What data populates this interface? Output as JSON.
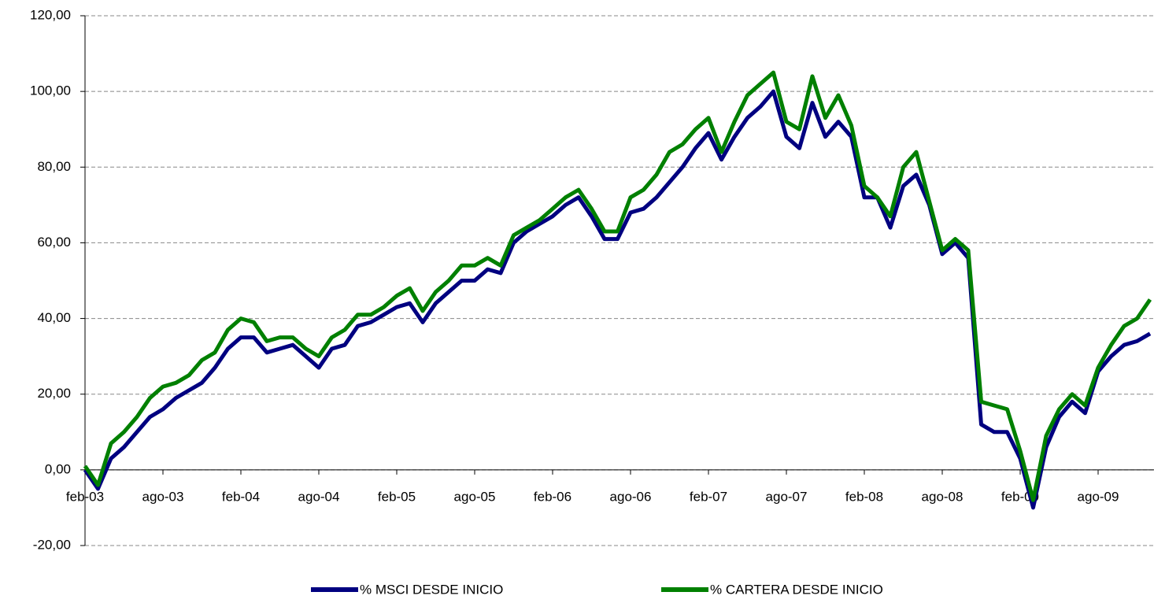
{
  "chart_data": {
    "type": "line",
    "categories": [
      "feb-03",
      null,
      null,
      null,
      null,
      null,
      "ago-03",
      null,
      null,
      null,
      null,
      null,
      "feb-04",
      null,
      null,
      null,
      null,
      null,
      "ago-04",
      null,
      null,
      null,
      null,
      null,
      "feb-05",
      null,
      null,
      null,
      null,
      null,
      "ago-05",
      null,
      null,
      null,
      null,
      null,
      "feb-06",
      null,
      null,
      null,
      null,
      null,
      "ago-06",
      null,
      null,
      null,
      null,
      null,
      "feb-07",
      null,
      null,
      null,
      null,
      null,
      "ago-07",
      null,
      null,
      null,
      null,
      null,
      "feb-08",
      null,
      null,
      null,
      null,
      null,
      "ago-08",
      null,
      null,
      null,
      null,
      null,
      "feb-09",
      null,
      null,
      null,
      null,
      null,
      "ago-09",
      null,
      null,
      null,
      null
    ],
    "series": [
      {
        "name": "% MSCI DESDE INICIO",
        "color": "#000080",
        "values": [
          0,
          -5,
          3,
          6,
          10,
          14,
          16,
          19,
          21,
          23,
          27,
          32,
          35,
          35,
          31,
          32,
          33,
          30,
          27,
          32,
          33,
          38,
          39,
          41,
          43,
          44,
          39,
          44,
          47,
          50,
          50,
          53,
          52,
          60,
          63,
          65,
          67,
          70,
          72,
          67,
          61,
          61,
          68,
          69,
          72,
          76,
          80,
          85,
          89,
          82,
          88,
          93,
          96,
          100,
          88,
          85,
          97,
          88,
          92,
          88,
          72,
          72,
          64,
          75,
          78,
          70,
          57,
          60,
          56,
          12,
          10,
          10,
          3,
          -10,
          6,
          14,
          18,
          15,
          26,
          30,
          33,
          34,
          36
        ]
      },
      {
        "name": "% CARTERA DESDE INICIO",
        "color": "#008000",
        "values": [
          1,
          -4,
          7,
          10,
          14,
          19,
          22,
          23,
          25,
          29,
          31,
          37,
          40,
          39,
          34,
          35,
          35,
          32,
          30,
          35,
          37,
          41,
          41,
          43,
          46,
          48,
          42,
          47,
          50,
          54,
          54,
          56,
          54,
          62,
          64,
          66,
          69,
          72,
          74,
          69,
          63,
          63,
          72,
          74,
          78,
          84,
          86,
          90,
          93,
          84,
          92,
          99,
          102,
          105,
          92,
          90,
          104,
          93,
          99,
          91,
          75,
          72,
          67,
          80,
          84,
          71,
          58,
          61,
          58,
          18,
          17,
          16,
          5,
          -8,
          9,
          16,
          20,
          17,
          27,
          33,
          38,
          40,
          45
        ]
      }
    ],
    "ylim": [
      -20,
      120
    ],
    "yticks": [
      {
        "value": -20,
        "label": "-20,00"
      },
      {
        "value": 0,
        "label": "0,00"
      },
      {
        "value": 20,
        "label": "20,00"
      },
      {
        "value": 40,
        "label": "40,00"
      },
      {
        "value": 60,
        "label": "60,00"
      },
      {
        "value": 80,
        "label": "80,00"
      },
      {
        "value": 100,
        "label": "100,00"
      },
      {
        "value": 120,
        "label": "120,00"
      }
    ],
    "grid": true,
    "legend": "bottom"
  }
}
